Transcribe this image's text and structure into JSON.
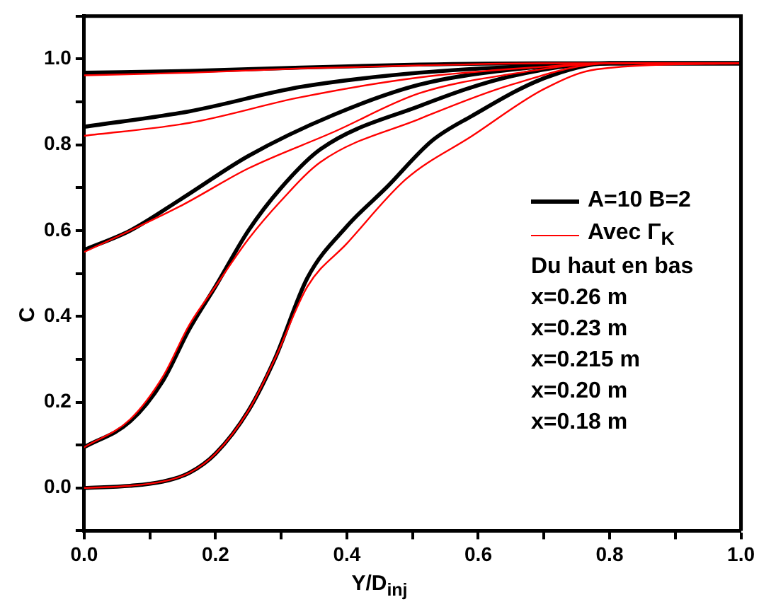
{
  "chart_data": {
    "type": "line",
    "xlabel": "Y/D$_{inj}$",
    "ylabel": "C",
    "xlim": [
      0,
      1
    ],
    "ylim": [
      -0.1,
      1.1
    ],
    "xticks": [
      {
        "value": 0,
        "label": "0.0"
      },
      {
        "value": 0.1,
        "label": null
      },
      {
        "value": 0.2,
        "label": "0.2"
      },
      {
        "value": 0.3,
        "label": null
      },
      {
        "value": 0.4,
        "label": "0.4"
      },
      {
        "value": 0.5,
        "label": null
      },
      {
        "value": 0.6,
        "label": "0.6"
      },
      {
        "value": 0.7,
        "label": null
      },
      {
        "value": 0.8,
        "label": "0.8"
      },
      {
        "value": 0.9,
        "label": null
      },
      {
        "value": 1,
        "label": "1.0"
      }
    ],
    "yticks": [
      {
        "value": -0.1,
        "label": null
      },
      {
        "value": 0,
        "label": "0.0"
      },
      {
        "value": 0.1,
        "label": null
      },
      {
        "value": 0.2,
        "label": "0.2"
      },
      {
        "value": 0.3,
        "label": null
      },
      {
        "value": 0.4,
        "label": "0.4"
      },
      {
        "value": 0.5,
        "label": null
      },
      {
        "value": 0.6,
        "label": "0.6"
      },
      {
        "value": 0.7,
        "label": null
      },
      {
        "value": 0.8,
        "label": "0.8"
      },
      {
        "value": 0.9,
        "label": null
      },
      {
        "value": 1,
        "label": "1.0"
      },
      {
        "value": 1.1,
        "label": null
      }
    ],
    "grid": false,
    "legend": "right",
    "marker": "none",
    "line_style": "solid",
    "annotations": [
      "Du haut en bas",
      "x=0.26 m",
      "x=0.23 m",
      "x=0.215 m",
      "x=0.20 m",
      "x=0.18 m"
    ],
    "series": [
      {
        "name": "A=10 B=2",
        "color": "#000000",
        "x": [
          0,
          0.16,
          0.33,
          0.51,
          0.7,
          0.8,
          1
        ],
        "values": [
          0.968,
          0.972,
          0.98,
          0.987,
          0.99,
          0.99,
          0.99
        ]
      },
      {
        "color": "#000000",
        "x": [
          0,
          0.16,
          0.33,
          0.51,
          0.7,
          0.8,
          1
        ],
        "values": [
          0.842,
          0.878,
          0.935,
          0.968,
          0.985,
          0.99,
          0.99
        ]
      },
      {
        "color": "#000000",
        "x": [
          0,
          0.07,
          0.15,
          0.25,
          0.38,
          0.51,
          0.65,
          0.8,
          1
        ],
        "values": [
          0.555,
          0.6,
          0.676,
          0.774,
          0.87,
          0.94,
          0.975,
          0.99,
          0.99
        ]
      },
      {
        "color": "#000000",
        "x": [
          0,
          0.07,
          0.12,
          0.16,
          0.2,
          0.25,
          0.3,
          0.36,
          0.51,
          0.65,
          0.8,
          1
        ],
        "values": [
          0.095,
          0.155,
          0.25,
          0.37,
          0.47,
          0.6,
          0.7,
          0.79,
          0.89,
          0.96,
          0.99,
          0.99
        ]
      },
      {
        "color": "#000000",
        "x": [
          0,
          0.07,
          0.12,
          0.16,
          0.2,
          0.25,
          0.29,
          0.34,
          0.4,
          0.46,
          0.53,
          0.59,
          0.7,
          0.8,
          1
        ],
        "values": [
          0,
          0.005,
          0.015,
          0.035,
          0.08,
          0.18,
          0.3,
          0.49,
          0.61,
          0.7,
          0.81,
          0.867,
          0.955,
          0.99,
          0.99
        ]
      },
      {
        "name": "Avec Γ$_{K}$",
        "color": "#ff0000",
        "x": [
          0,
          0.16,
          0.33,
          0.51,
          0.7,
          0.8,
          1
        ],
        "values": [
          0.962,
          0.968,
          0.978,
          0.985,
          0.99,
          0.99,
          0.99
        ]
      },
      {
        "color": "#ff0000",
        "x": [
          0,
          0.16,
          0.33,
          0.51,
          0.7,
          0.8,
          1
        ],
        "values": [
          0.821,
          0.851,
          0.911,
          0.957,
          0.982,
          0.99,
          0.99
        ]
      },
      {
        "color": "#ff0000",
        "x": [
          0,
          0.07,
          0.15,
          0.25,
          0.38,
          0.51,
          0.65,
          0.8,
          1
        ],
        "values": [
          0.55,
          0.6,
          0.66,
          0.745,
          0.83,
          0.92,
          0.965,
          0.99,
          0.99
        ]
      },
      {
        "color": "#ff0000",
        "x": [
          0,
          0.07,
          0.12,
          0.16,
          0.2,
          0.25,
          0.3,
          0.36,
          0.51,
          0.65,
          0.8,
          1
        ],
        "values": [
          0.095,
          0.16,
          0.26,
          0.38,
          0.47,
          0.58,
          0.67,
          0.76,
          0.86,
          0.94,
          0.99,
          0.99
        ]
      },
      {
        "color": "#ff0000",
        "x": [
          0,
          0.07,
          0.12,
          0.16,
          0.2,
          0.25,
          0.29,
          0.34,
          0.4,
          0.49,
          0.59,
          0.7,
          0.78,
          1
        ],
        "values": [
          0,
          0.005,
          0.015,
          0.035,
          0.08,
          0.18,
          0.3,
          0.47,
          0.57,
          0.72,
          0.82,
          0.93,
          0.976,
          0.99
        ]
      }
    ]
  }
}
